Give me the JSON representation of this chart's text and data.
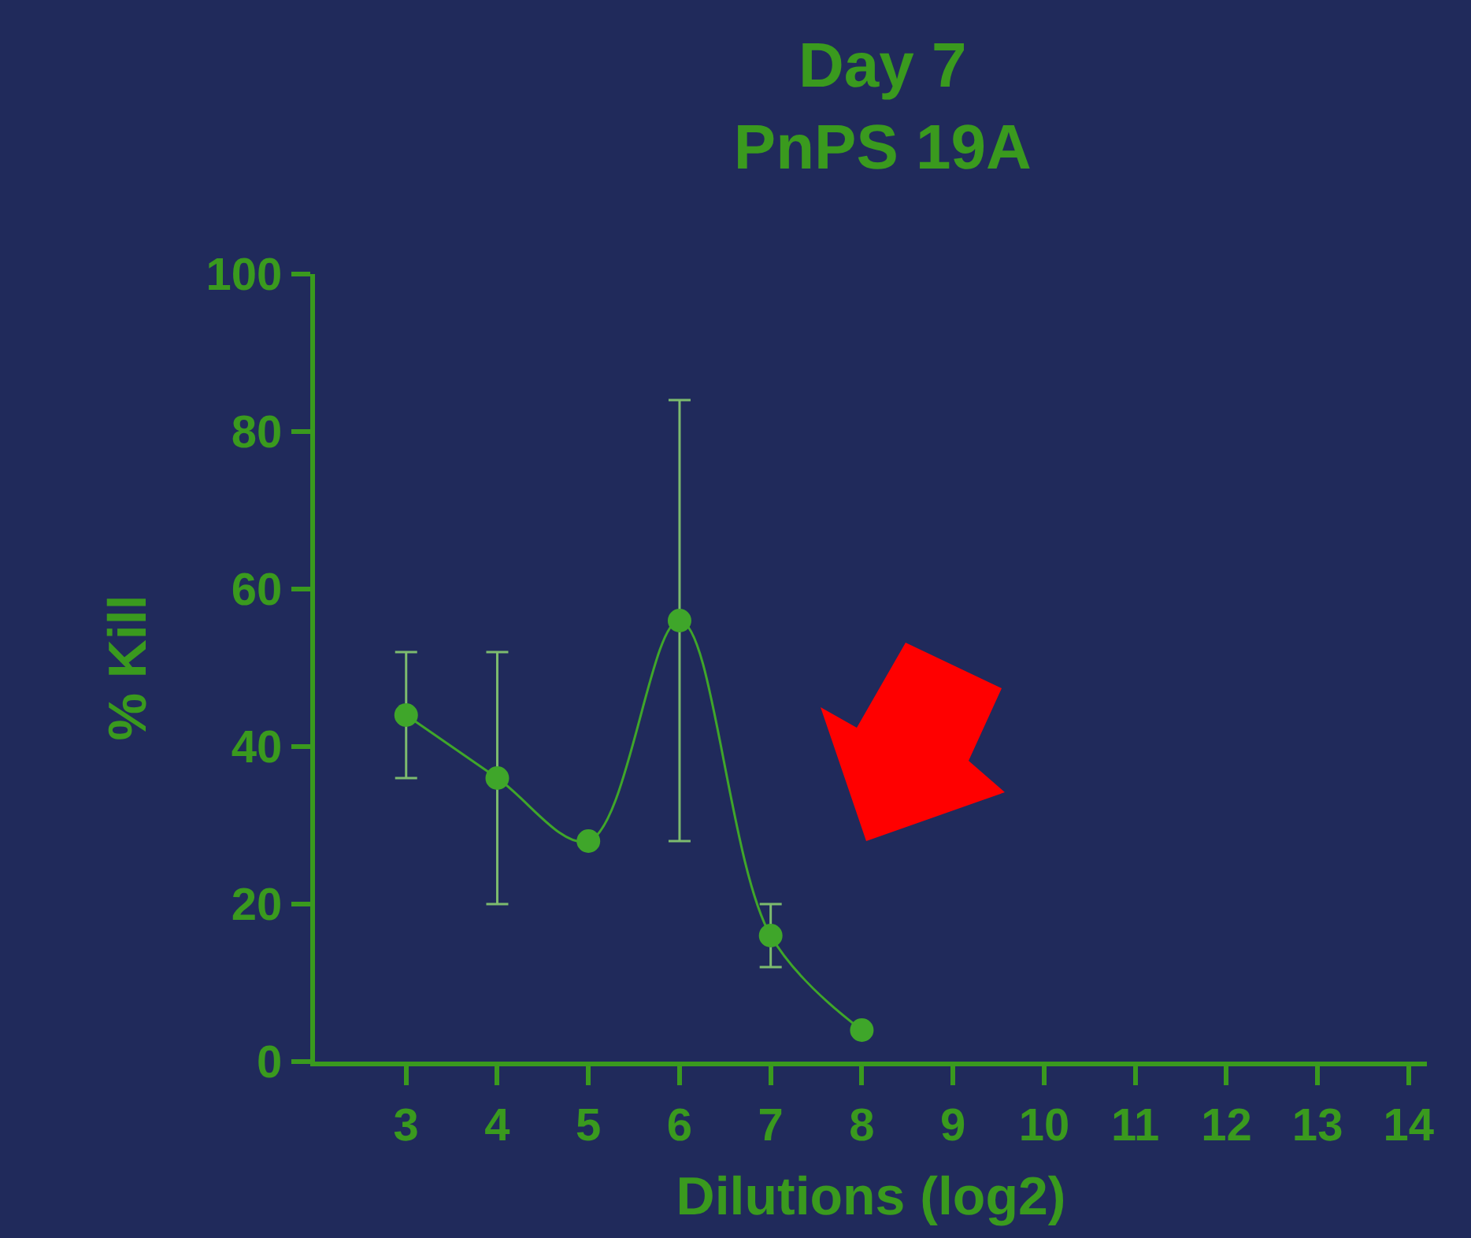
{
  "chart_data": {
    "type": "line",
    "title": "Day 7\nPnPS 19A",
    "xlabel": "Dilutions (log2)",
    "ylabel": "% Kill",
    "x": [
      3,
      4,
      5,
      6,
      7,
      8
    ],
    "series": [
      {
        "color": "#3fa62a",
        "values": [
          44,
          36,
          28,
          56,
          16,
          4
        ],
        "errors": [
          [
            36,
            52
          ],
          [
            20,
            52
          ],
          null,
          [
            28,
            84
          ],
          [
            12,
            20
          ],
          null
        ]
      }
    ],
    "xlim": [
      2,
      14.2
    ],
    "xticks": [
      3,
      4,
      5,
      6,
      7,
      8,
      9,
      10,
      11,
      12,
      13,
      14
    ],
    "ylim": [
      0,
      100
    ],
    "yticks": [
      0,
      20,
      40,
      60,
      80,
      100
    ],
    "grid": false,
    "marker": "circle",
    "line_style": "solid"
  }
}
